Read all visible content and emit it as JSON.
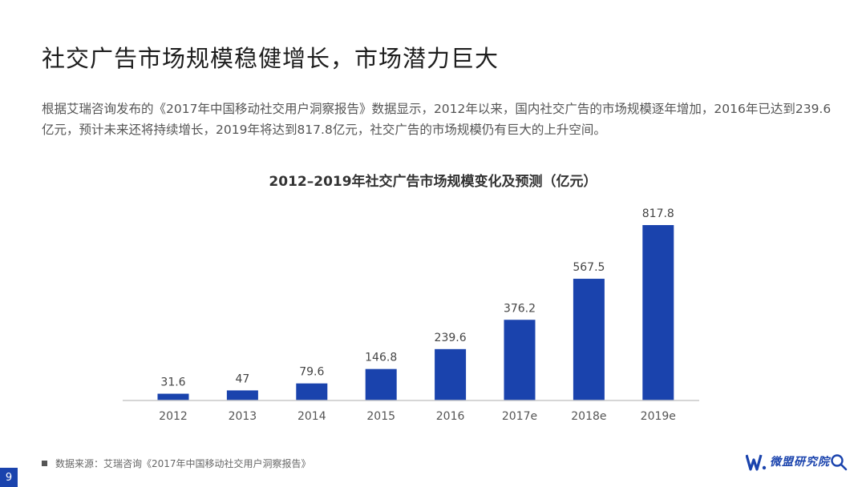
{
  "title": "社交广告市场规模稳健增长，市场潜力巨大",
  "intro": "根据艾瑞咨询发布的《2017年中国移动社交用户洞察报告》数据显示，2012年以来，国内社交广告的市场规模逐年增加，2016年已达到239.6亿元，预计未来还将持续增长，2019年将达到817.8亿元，社交广告的市场规模仍有巨大的上升空间。",
  "chart_data": {
    "type": "bar",
    "title": "2012–2019年社交广告市场规模变化及预测（亿元）",
    "categories": [
      "2012",
      "2013",
      "2014",
      "2015",
      "2016",
      "2017e",
      "2018e",
      "2019e"
    ],
    "values": [
      31.6,
      47,
      79.6,
      146.8,
      239.6,
      376.2,
      567.5,
      817.8
    ],
    "value_labels": [
      "31.6",
      "47",
      "79.6",
      "146.8",
      "239.6",
      "376.2",
      "567.5",
      "817.8"
    ],
    "ylim": [
      0,
      817.8
    ],
    "bar_color": "#1a43ad",
    "grid": false,
    "legend": "none"
  },
  "source": "数据来源：艾瑞咨询《2017年中国移动社交用户洞察报告》",
  "page_number": "9",
  "logo": {
    "name": "微盟研究院",
    "icon": "weimob-w-logo",
    "search_icon": "search-icon"
  }
}
